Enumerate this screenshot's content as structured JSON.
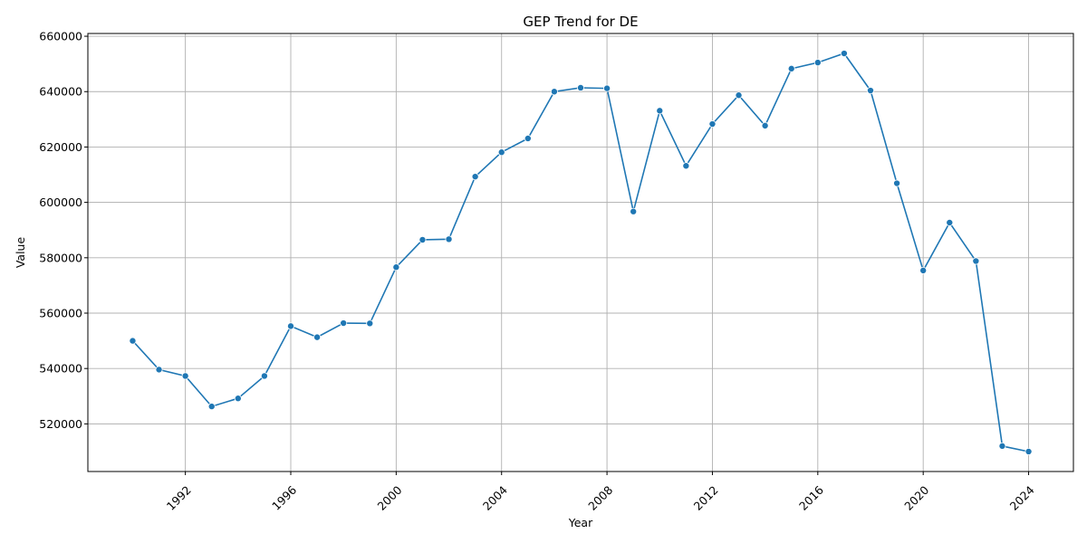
{
  "chart_data": {
    "type": "line",
    "title": "GEP Trend for DE",
    "xlabel": "Year",
    "ylabel": "Value",
    "x": [
      1990,
      1991,
      1992,
      1993,
      1994,
      1995,
      1996,
      1997,
      1998,
      1999,
      2000,
      2001,
      2002,
      2003,
      2004,
      2005,
      2006,
      2007,
      2008,
      2009,
      2010,
      2011,
      2012,
      2013,
      2014,
      2015,
      2016,
      2017,
      2018,
      2019,
      2020,
      2021,
      2022,
      2023,
      2024
    ],
    "series": [
      {
        "values": [
          550000,
          539600,
          537300,
          526300,
          529200,
          537300,
          555300,
          551300,
          556400,
          556300,
          576600,
          586500,
          586700,
          609300,
          618100,
          623100,
          640000,
          641400,
          641200,
          596700,
          633100,
          613200,
          628300,
          638700,
          627700,
          648300,
          650500,
          653800,
          640400,
          606900,
          575400,
          592700,
          578800,
          512000,
          510000
        ],
        "color": "#1f77b4"
      }
    ],
    "x_ticks": [
      1992,
      1996,
      2000,
      2004,
      2008,
      2012,
      2016,
      2020,
      2024
    ],
    "y_ticks": [
      520000,
      540000,
      560000,
      580000,
      600000,
      620000,
      640000,
      660000
    ],
    "xlim": [
      1988.3,
      2025.7
    ],
    "ylim": [
      502800,
      661000
    ],
    "grid": true,
    "legend": "none",
    "marker": "circle"
  }
}
